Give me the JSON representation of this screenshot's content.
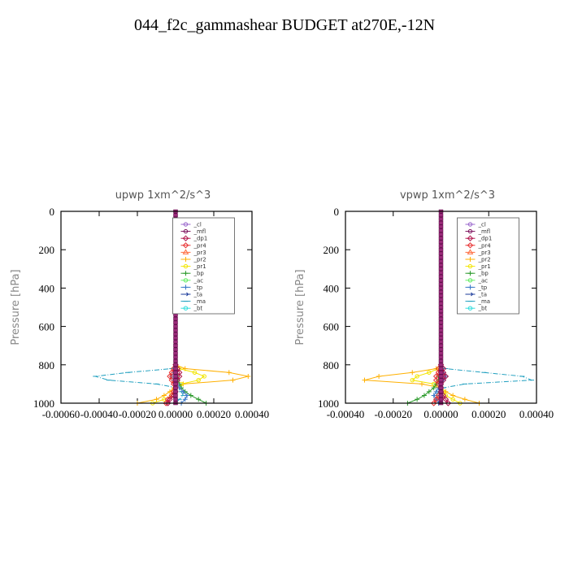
{
  "figure": {
    "title": "044_f2c_gammashear  BUDGET at270E,-12N"
  },
  "legend_entries": [
    {
      "label": "_cl",
      "color": "#9966cc",
      "marker": "circle"
    },
    {
      "label": "_mfl",
      "color": "#7a0f5c",
      "marker": "circle"
    },
    {
      "label": "_dp1",
      "color": "#b0124a",
      "marker": "diamond"
    },
    {
      "label": "_pr4",
      "color": "#e83030",
      "marker": "diamond"
    },
    {
      "label": "_pr3",
      "color": "#ff6a3d",
      "marker": "triangle"
    },
    {
      "label": "_pr2",
      "color": "#ffb000",
      "marker": "plus"
    },
    {
      "label": "_pr1",
      "color": "#f2e500",
      "marker": "circle"
    },
    {
      "label": "_bp",
      "color": "#2a9a2a",
      "marker": "plus"
    },
    {
      "label": "_ac",
      "color": "#66ee66",
      "marker": "circle"
    },
    {
      "label": "_tp",
      "color": "#3a78c8",
      "marker": "plus"
    },
    {
      "label": "_ta",
      "color": "#1a3a9a",
      "marker": "arrow"
    },
    {
      "label": "_ma",
      "color": "#1f9fbf",
      "marker": "dash"
    },
    {
      "label": "_bt",
      "color": "#33dddd",
      "marker": "circle"
    }
  ],
  "chart_data": [
    {
      "type": "line",
      "title": "upwp   1xm^2/s^3",
      "xlabel": "",
      "ylabel": "Pressure [hPa]",
      "xlim": [
        -0.0006,
        0.0004
      ],
      "ylim": [
        1000,
        0
      ],
      "xticks": [
        "-0.00060",
        "-0.00040",
        "-0.00020",
        "0.00000",
        "0.00020",
        "0.00040"
      ],
      "yticks": [
        "0",
        "200",
        "400",
        "600",
        "800",
        "1000"
      ],
      "legend_position": "top-right",
      "pressure": [
        800,
        820,
        840,
        860,
        880,
        900,
        920,
        940,
        960,
        980,
        1000
      ],
      "series": [
        {
          "name": "_ma",
          "values": [
            0,
            -2e-05,
            -0.00025,
            -0.00042,
            -0.00035,
            -0.0001,
            1e-05,
            3e-05,
            4e-05,
            2e-05,
            0
          ]
        },
        {
          "name": "_pr2",
          "values": [
            0,
            5e-05,
            0.00028,
            0.00038,
            0.0003,
            4e-05,
            -1e-05,
            -3e-05,
            -6e-05,
            -0.0001,
            -0.0002
          ]
        },
        {
          "name": "_pr1",
          "values": [
            0,
            2e-05,
            0.0001,
            0.00015,
            0.00012,
            3e-05,
            0,
            -1e-05,
            -2e-05,
            -6e-05,
            -0.00012
          ]
        },
        {
          "name": "_bp",
          "values": [
            0,
            0,
            0,
            1e-05,
            1e-05,
            2e-05,
            3e-05,
            5e-05,
            8e-05,
            0.00012,
            0.00016
          ]
        },
        {
          "name": "_tp",
          "values": [
            0,
            0,
            -1e-05,
            -2e-05,
            -1e-05,
            1e-05,
            2e-05,
            4e-05,
            6e-05,
            5e-05,
            3e-05
          ]
        },
        {
          "name": "_pr4",
          "values": [
            0,
            -1e-05,
            -2e-05,
            -3e-05,
            -2e-05,
            -1e-05,
            0,
            -1e-05,
            -2e-05,
            -4e-05,
            -5e-05
          ]
        },
        {
          "name": "_dp1",
          "values": [
            0,
            1e-05,
            2e-05,
            2e-05,
            1e-05,
            0,
            0,
            0,
            -1e-05,
            -3e-05,
            -4e-05
          ]
        }
      ]
    },
    {
      "type": "line",
      "title": "vpwp   1xm^2/s^3",
      "xlabel": "",
      "ylabel": "Pressure [hPa]",
      "xlim": [
        -0.0004,
        0.0004
      ],
      "ylim": [
        1000,
        0
      ],
      "xticks": [
        "-0.00040",
        "-0.00020",
        "0.00000",
        "0.00020",
        "0.00040"
      ],
      "yticks": [
        "0",
        "200",
        "400",
        "600",
        "800",
        "1000"
      ],
      "legend_position": "top-right",
      "pressure": [
        800,
        820,
        840,
        860,
        880,
        900,
        920,
        940,
        960,
        980,
        1000
      ],
      "series": [
        {
          "name": "_ma",
          "values": [
            0,
            2e-05,
            0.00018,
            0.00034,
            0.00038,
            0.0001,
            1e-05,
            -1e-05,
            -2e-05,
            -1e-05,
            0
          ]
        },
        {
          "name": "_pr2",
          "values": [
            0,
            -2e-05,
            -0.00012,
            -0.00026,
            -0.00032,
            -8e-05,
            0,
            2e-05,
            5e-05,
            0.0001,
            0.00016
          ]
        },
        {
          "name": "_pr1",
          "values": [
            0,
            -1e-05,
            -5e-05,
            -0.0001,
            -0.00012,
            -3e-05,
            0,
            1e-05,
            2e-05,
            5e-05,
            8e-05
          ]
        },
        {
          "name": "_bp",
          "values": [
            0,
            0,
            0,
            -1e-05,
            -1e-05,
            -2e-05,
            -3e-05,
            -5e-05,
            -7e-05,
            -0.0001,
            -0.00014
          ]
        },
        {
          "name": "_tp",
          "values": [
            0,
            0,
            1e-05,
            2e-05,
            1e-05,
            0,
            -1e-05,
            -2e-05,
            -3e-05,
            -2e-05,
            -1e-05
          ]
        },
        {
          "name": "_pr4",
          "values": [
            0,
            -1e-05,
            -1e-05,
            -2e-05,
            -2e-05,
            -1e-05,
            0,
            0,
            -1e-05,
            -2e-05,
            -3e-05
          ]
        },
        {
          "name": "_dp1",
          "values": [
            0,
            1e-05,
            1e-05,
            2e-05,
            1e-05,
            0,
            0,
            0,
            1e-05,
            2e-05,
            3e-05
          ]
        }
      ]
    }
  ]
}
